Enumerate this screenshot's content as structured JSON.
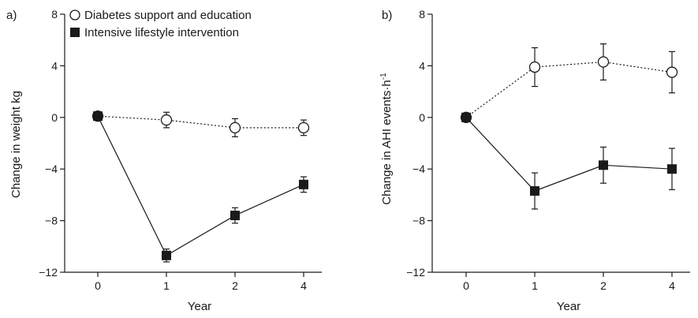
{
  "chart_data": [
    {
      "panel_label": "a)",
      "type": "line",
      "xlabel": "Year",
      "ylabel": "Change in weight kg",
      "x": [
        "0",
        "1",
        "2",
        "4"
      ],
      "ylim": [
        -12,
        8
      ],
      "yticks": [
        8,
        4,
        0,
        -4,
        -8,
        -12
      ],
      "grid": false,
      "legend_position": "top-left",
      "series": [
        {
          "name": "Diabetes support and education",
          "marker": "open-circle",
          "line": "dotted",
          "values": [
            0.1,
            -0.2,
            -0.8,
            -0.8
          ],
          "err": [
            0.3,
            0.6,
            0.7,
            0.6
          ]
        },
        {
          "name": "Intensive lifestyle intervention",
          "marker": "filled-square",
          "line": "solid",
          "values": [
            0.1,
            -10.7,
            -7.6,
            -5.2
          ],
          "err": [
            0.3,
            0.5,
            0.6,
            0.6
          ]
        }
      ]
    },
    {
      "panel_label": "b)",
      "type": "line",
      "xlabel": "Year",
      "ylabel_main": "Change in AHI events·h",
      "ylabel_sup": "-1",
      "x": [
        "0",
        "1",
        "2",
        "4"
      ],
      "ylim": [
        -12,
        8
      ],
      "yticks": [
        8,
        4,
        0,
        -4,
        -8,
        -12
      ],
      "grid": false,
      "series": [
        {
          "marker": "open-circle",
          "line": "dotted",
          "values": [
            0,
            3.9,
            4.3,
            3.5
          ],
          "err": [
            0.3,
            1.5,
            1.4,
            1.6
          ]
        },
        {
          "marker": "filled-square",
          "line": "solid",
          "values": [
            0,
            -5.7,
            -3.7,
            -4.0
          ],
          "err": [
            0.3,
            1.4,
            1.4,
            1.6
          ]
        }
      ]
    }
  ]
}
